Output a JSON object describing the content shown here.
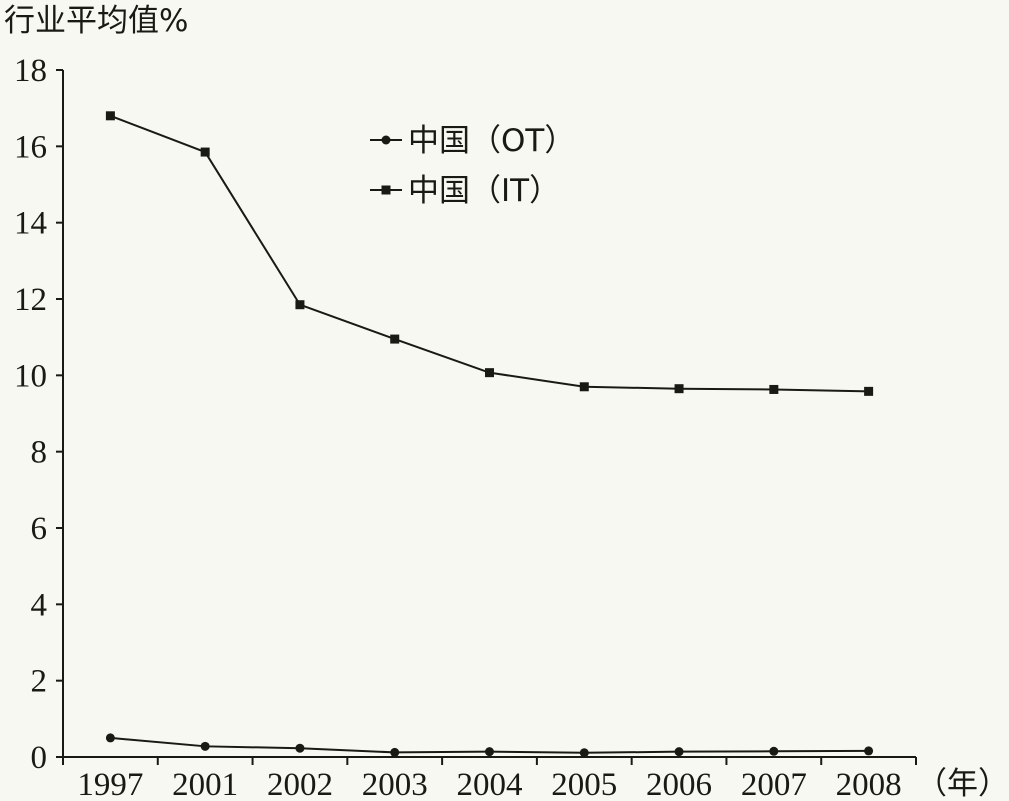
{
  "chart_data": {
    "type": "line",
    "ylabel": "行业平均值%",
    "xlabel": "（年）",
    "categories": [
      "1997",
      "2001",
      "2002",
      "2003",
      "2004",
      "2005",
      "2006",
      "2007",
      "2008"
    ],
    "ylim": [
      0,
      18
    ],
    "yticks": [
      "0",
      "2",
      "4",
      "6",
      "8",
      "10",
      "12",
      "14",
      "16",
      "18"
    ],
    "grid": false,
    "legend_position": "top-center",
    "series": [
      {
        "name": "中国（OT）",
        "marker": "circle",
        "values": [
          0.5,
          0.28,
          0.23,
          0.12,
          0.14,
          0.11,
          0.14,
          0.15,
          0.16
        ]
      },
      {
        "name": "中国（IT）",
        "marker": "square",
        "values": [
          16.8,
          15.85,
          11.85,
          10.95,
          10.07,
          9.7,
          9.65,
          9.63,
          9.58
        ]
      }
    ],
    "line_color": "#1a1a14"
  }
}
